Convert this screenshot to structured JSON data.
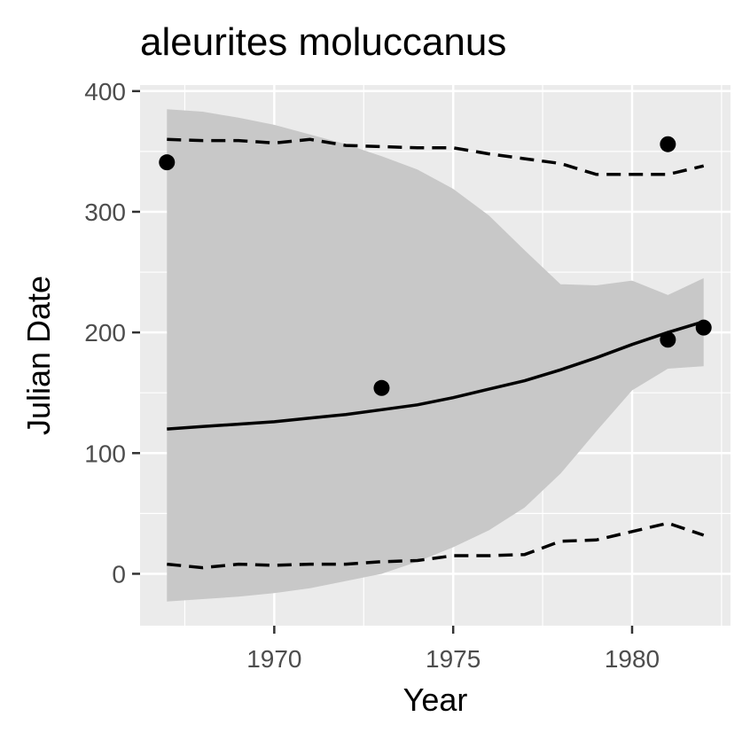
{
  "chart_data": {
    "type": "scatter",
    "title": "aleurites moluccanus",
    "xlabel": "Year",
    "ylabel": "Julian Date",
    "xlim": [
      1966.25,
      1982.75
    ],
    "ylim": [
      -43,
      405
    ],
    "x_ticks": [
      1970,
      1975,
      1980
    ],
    "y_ticks": [
      0,
      100,
      200,
      300,
      400
    ],
    "grid": true,
    "legend": "none",
    "colors": {
      "panel": "#ebebeb",
      "grid": "#ffffff",
      "ribbon": "#c8c8c8",
      "line": "#000000",
      "point": "#000000"
    },
    "points": [
      {
        "x": 1967,
        "y": 341
      },
      {
        "x": 1973,
        "y": 154
      },
      {
        "x": 1981,
        "y": 356
      },
      {
        "x": 1981,
        "y": 194
      },
      {
        "x": 1982,
        "y": 204
      }
    ],
    "fit_line": {
      "x": [
        1967,
        1968,
        1969,
        1970,
        1971,
        1972,
        1973,
        1974,
        1975,
        1976,
        1977,
        1978,
        1979,
        1980,
        1981,
        1982
      ],
      "y": [
        120,
        122,
        124,
        126,
        129,
        132,
        136,
        140,
        146,
        153,
        160,
        169,
        179,
        190,
        200,
        209
      ]
    },
    "confidence_band": {
      "x": [
        1967,
        1968,
        1969,
        1970,
        1971,
        1972,
        1973,
        1974,
        1975,
        1976,
        1977,
        1978,
        1979,
        1980,
        1981,
        1982
      ],
      "lower": [
        -23,
        -21,
        -19,
        -16,
        -12,
        -6,
        0,
        10,
        22,
        36,
        55,
        83,
        118,
        152,
        170,
        172
      ],
      "upper": [
        385,
        383,
        378,
        372,
        364,
        356,
        346,
        335,
        319,
        297,
        268,
        240,
        239,
        243,
        231,
        245
      ]
    },
    "upper_quantile": {
      "x": [
        1967,
        1968,
        1969,
        1970,
        1971,
        1972,
        1973,
        1974,
        1975,
        1976,
        1977,
        1978,
        1979,
        1980,
        1981,
        1982
      ],
      "y": [
        360,
        359,
        359,
        357,
        360,
        355,
        354,
        353,
        353,
        348,
        344,
        340,
        331,
        331,
        331,
        338
      ]
    },
    "lower_quantile": {
      "x": [
        1967,
        1968,
        1969,
        1970,
        1971,
        1972,
        1973,
        1974,
        1975,
        1976,
        1977,
        1978,
        1979,
        1980,
        1981,
        1982
      ],
      "y": [
        8,
        5,
        8,
        7,
        8,
        8,
        10,
        11,
        15,
        15,
        16,
        27,
        28,
        35,
        42,
        32
      ]
    }
  }
}
